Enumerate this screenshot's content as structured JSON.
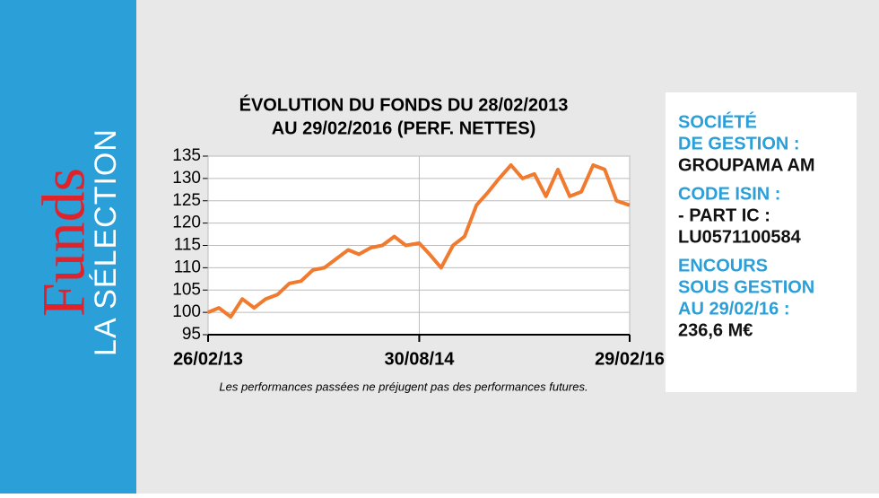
{
  "banner": {
    "brand": "Funds",
    "subtitle": "LA SÉLECTION"
  },
  "chart_data": {
    "type": "line",
    "title": [
      "ÉVOLUTION DU FONDS DU 28/02/2013",
      "AU 29/02/2016 (PERF. NETTES)"
    ],
    "x": [
      "2013-02-26",
      "2013-03-26",
      "2013-04-26",
      "2013-05-26",
      "2013-06-26",
      "2013-07-26",
      "2013-08-26",
      "2013-09-26",
      "2013-10-26",
      "2013-11-26",
      "2013-12-26",
      "2014-01-26",
      "2014-02-26",
      "2014-03-26",
      "2014-04-26",
      "2014-05-26",
      "2014-06-26",
      "2014-07-26",
      "2014-08-30",
      "2014-09-26",
      "2014-10-26",
      "2014-11-26",
      "2014-12-26",
      "2015-01-26",
      "2015-02-26",
      "2015-03-26",
      "2015-04-26",
      "2015-05-26",
      "2015-06-26",
      "2015-07-26",
      "2015-08-26",
      "2015-09-26",
      "2015-10-26",
      "2015-11-26",
      "2015-12-26",
      "2016-01-26",
      "2016-02-29"
    ],
    "values": [
      100,
      101,
      99,
      103,
      101,
      103,
      104,
      106.5,
      107,
      109.5,
      110,
      112,
      114,
      113,
      114.5,
      115,
      117,
      115,
      115.5,
      113,
      110,
      115,
      117,
      124,
      127,
      130,
      133,
      130,
      131,
      126,
      132,
      126,
      127,
      133,
      132,
      125,
      124
    ],
    "color": "#f07a2e",
    "xlim": [
      "2013-02-26",
      "2016-02-29"
    ],
    "xticks": [
      {
        "value": "2013-02-26",
        "label": "26/02/13"
      },
      {
        "value": "2014-08-30",
        "label": "30/08/14"
      },
      {
        "value": "2016-02-29",
        "label": "29/02/16"
      }
    ],
    "ylim": [
      95,
      135
    ],
    "yticks": [
      95,
      100,
      105,
      110,
      115,
      120,
      125,
      130,
      135
    ],
    "grid": true
  },
  "footnote": "Les performances passées ne préjugent pas des performances futures.",
  "sidebar": [
    {
      "label": [
        "SOCIÉTÉ",
        "DE GESTION :"
      ],
      "value": [
        "GROUPAMA AM"
      ]
    },
    {
      "label": [
        "CODE ISIN :"
      ],
      "value": [
        "- PART IC :",
        "LU0571100584"
      ]
    },
    {
      "label": [
        "ENCOURS",
        "SOUS GESTION",
        "AU 29/02/16 :"
      ],
      "value": [
        "236,6 M€"
      ]
    }
  ]
}
